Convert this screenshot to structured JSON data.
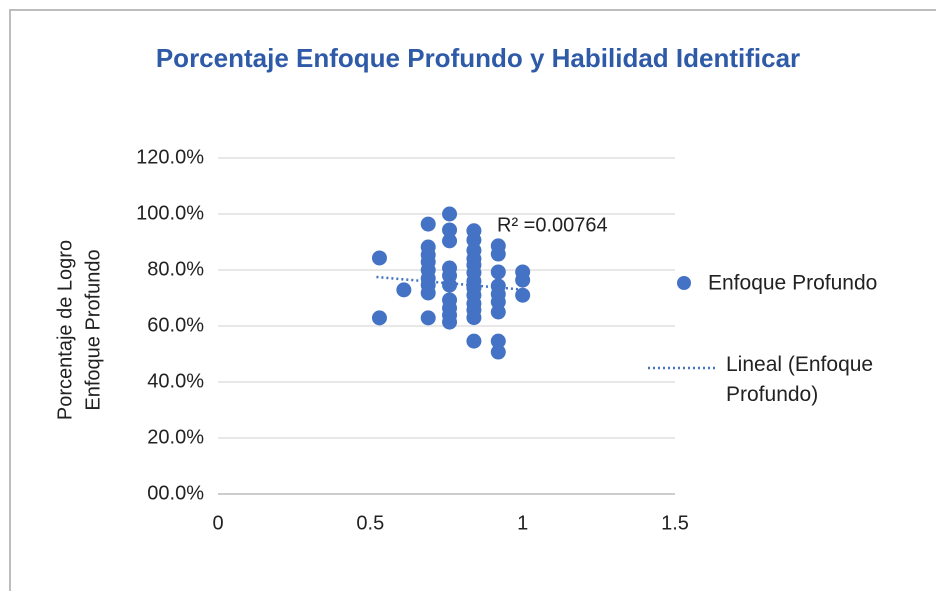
{
  "chart_data": {
    "type": "scatter",
    "title": "Porcentaje Enfoque Profundo y Habilidad Identificar",
    "y_label": [
      "Porcentaje de Logro",
      "Enfoque Profundo"
    ],
    "xlim": [
      0,
      1.5
    ],
    "xticks": [
      0,
      0.5,
      1,
      1.5
    ],
    "ylim": [
      0,
      120
    ],
    "yticks": [
      {
        "value": 0,
        "label": "00.0%"
      },
      {
        "value": 20,
        "label": "20.0%"
      },
      {
        "value": 40,
        "label": "40.0%"
      },
      {
        "value": 60,
        "label": "60.0%"
      },
      {
        "value": 80,
        "label": "80.0%"
      },
      {
        "value": 100,
        "label": "100.0%"
      },
      {
        "value": 120,
        "label": "120.0%"
      }
    ],
    "grid": true,
    "legend": "right",
    "series": [
      {
        "name": "Enfoque Profundo",
        "color": "#4472c4",
        "x": [
          0.53,
          0.53,
          0.61,
          0.69,
          0.69,
          0.69,
          0.69,
          0.69,
          0.69,
          0.69,
          0.69,
          0.69,
          0.76,
          0.76,
          0.76,
          0.76,
          0.76,
          0.76,
          0.76,
          0.76,
          0.76,
          0.76,
          0.84,
          0.84,
          0.84,
          0.84,
          0.84,
          0.84,
          0.84,
          0.84,
          0.84,
          0.84,
          0.84,
          0.84,
          0.84,
          0.92,
          0.92,
          0.92,
          0.92,
          0.92,
          0.92,
          0.92,
          0.92,
          0.92,
          1.0,
          1.0,
          1.0
        ],
        "values": [
          84.3,
          62.9,
          72.9,
          96.4,
          88.2,
          85.4,
          82.9,
          80,
          77,
          74.6,
          71.8,
          62.9,
          100,
          94.3,
          90.4,
          80.7,
          78,
          74.6,
          69.3,
          66.4,
          63.9,
          61.4,
          94,
          90.7,
          87,
          84,
          81.8,
          79,
          76,
          73.6,
          71,
          68,
          65.7,
          63,
          54.6,
          88.6,
          85.7,
          79.3,
          74.3,
          71.4,
          68.6,
          65,
          54.6,
          50.7,
          79.3,
          76.4,
          71
        ]
      }
    ],
    "trendline": {
      "name": "Lineal (Enfoque Profundo)",
      "color": "#4472c4",
      "x": [
        0.52,
        1.0
      ],
      "values": [
        77.5,
        73
      ]
    },
    "annotation": "R² =0.00764"
  }
}
